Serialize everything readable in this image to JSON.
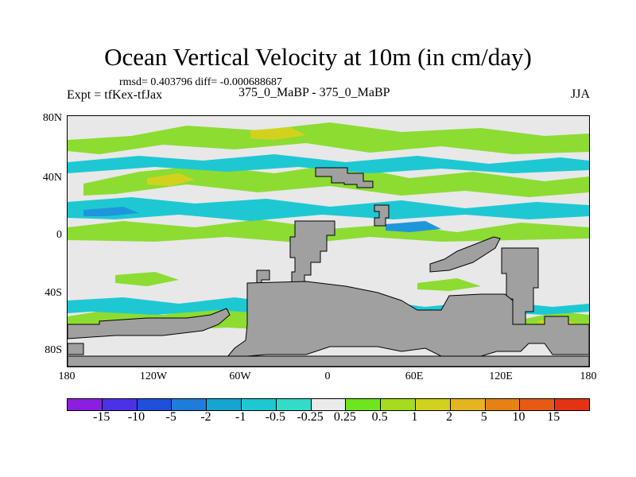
{
  "title": "Ocean Vertical Velocity at 10m (in cm/day)",
  "stats": "rmsd= 0.403796 diff= -0.000688687",
  "expt": "Expt = tfKex-tfJax",
  "runs": "375_0_MaBP - 375_0_MaBP",
  "season": "JJA",
  "lat_ticks": [
    "80N",
    "40N",
    "0",
    "40S",
    "80S"
  ],
  "lon_ticks": [
    "180",
    "120W",
    "60W",
    "0",
    "60E",
    "120E",
    "180"
  ],
  "colorbar": {
    "colors": [
      "#8c1ee0",
      "#4b32e6",
      "#1e50dc",
      "#1e7ddc",
      "#14a5d2",
      "#1ec8d2",
      "#32dcc8",
      "#ebebeb",
      "#6ee61e",
      "#a5dc1e",
      "#d2d21e",
      "#e6b41e",
      "#e68214",
      "#e65a14",
      "#e63214"
    ],
    "labels": [
      "-15",
      "-10",
      "-5",
      "-2",
      "-1",
      "-0.5",
      "-0.25",
      "0.25",
      "0.5",
      "1",
      "2",
      "5",
      "10",
      "15"
    ]
  },
  "map_colors": {
    "land": "#a0a0a0",
    "background": "#e8e8e8",
    "positive": "#8cdc32",
    "strong_positive": "#d2d21e",
    "negative": "#1ec8d2",
    "strong_negative": "#1e96dc"
  }
}
